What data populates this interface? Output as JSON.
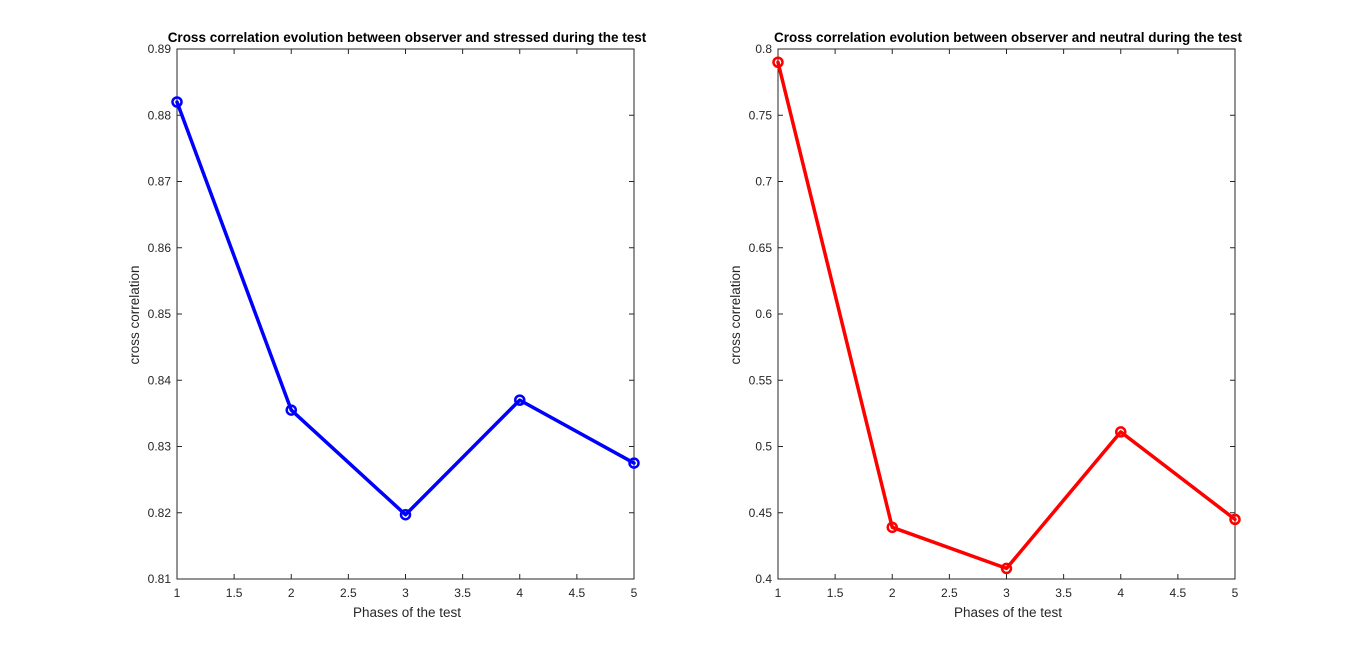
{
  "chart_data": [
    {
      "type": "line",
      "title": "Cross correlation evolution between observer and stressed during the test",
      "xlabel": "Phases of the test",
      "ylabel": "cross correlation",
      "xlim": [
        1,
        5
      ],
      "ylim": [
        0.81,
        0.89
      ],
      "xticks": [
        "1",
        "1.5",
        "2",
        "2.5",
        "3",
        "3.5",
        "4",
        "4.5",
        "5"
      ],
      "yticks": [
        "0.81",
        "0.82",
        "0.83",
        "0.84",
        "0.85",
        "0.86",
        "0.87",
        "0.88",
        "0.89"
      ],
      "x": [
        1,
        2,
        3,
        4,
        5
      ],
      "series": [
        {
          "values": [
            0.882,
            0.8355,
            0.8197,
            0.837,
            0.8275
          ],
          "color": "#0000ff",
          "marker": "circle"
        }
      ],
      "grid": false,
      "box": true
    },
    {
      "type": "line",
      "title": "Cross correlation evolution between observer and neutral during the test",
      "xlabel": "Phases of the test",
      "ylabel": "cross correlation",
      "xlim": [
        1,
        5
      ],
      "ylim": [
        0.4,
        0.8
      ],
      "xticks": [
        "1",
        "1.5",
        "2",
        "2.5",
        "3",
        "3.5",
        "4",
        "4.5",
        "5"
      ],
      "yticks": [
        "0.4",
        "0.45",
        "0.5",
        "0.55",
        "0.6",
        "0.65",
        "0.7",
        "0.75",
        "0.8"
      ],
      "x": [
        1,
        2,
        3,
        4,
        5
      ],
      "series": [
        {
          "values": [
            0.79,
            0.439,
            0.408,
            0.511,
            0.445
          ],
          "color": "#ff0000",
          "marker": "circle"
        }
      ],
      "grid": false,
      "box": true
    }
  ]
}
